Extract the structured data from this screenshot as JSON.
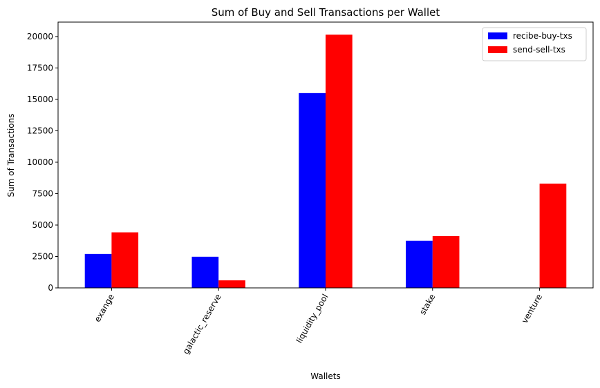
{
  "chart_data": {
    "type": "bar",
    "title": "Sum of Buy and Sell Transactions per Wallet",
    "xlabel": "Wallets",
    "ylabel": "Sum of Transactions",
    "categories": [
      "exange",
      "galactic_reserve",
      "liquidity_pool",
      "stake",
      "venture"
    ],
    "series": [
      {
        "name": "recibe-buy-txs",
        "color": "#0000ff",
        "values": [
          2700,
          2480,
          15500,
          3750,
          0
        ]
      },
      {
        "name": "send-sell-txs",
        "color": "#ff0000",
        "values": [
          4420,
          600,
          20150,
          4120,
          8300
        ]
      }
    ],
    "ylim": [
      0,
      21150
    ],
    "yticks": [
      0,
      2500,
      5000,
      7500,
      10000,
      12500,
      15000,
      17500,
      20000
    ],
    "ytick_labels": [
      "0",
      "2500",
      "5000",
      "7500",
      "10000",
      "12500",
      "15000",
      "17500",
      "20000"
    ],
    "grid": false,
    "legend_position": "top-right",
    "xtick_rotation": 60
  }
}
